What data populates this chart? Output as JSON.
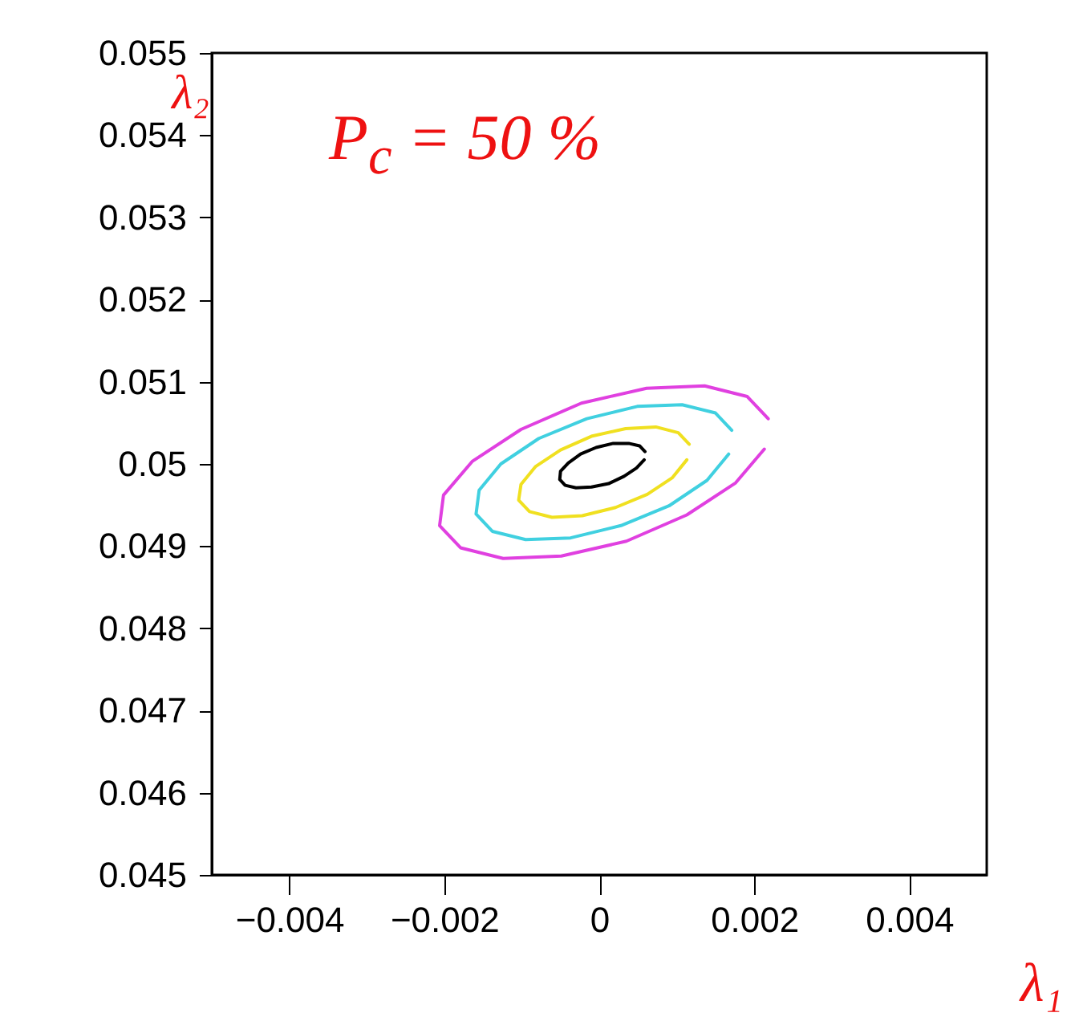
{
  "chart_data": {
    "type": "line",
    "xlabel": "λ₁",
    "ylabel": "λ₂",
    "annotations": [
      "P$_{c}$ = 50 %"
    ],
    "xlim": [
      -0.005,
      0.005
    ],
    "xticks": [
      -0.004,
      -0.002,
      0,
      0.002,
      0.004
    ],
    "ylim": [
      0.045,
      0.055
    ],
    "yticks": [
      0.045,
      0.046,
      0.047,
      0.048,
      0.049,
      0.05,
      0.051,
      0.052,
      0.053,
      0.054,
      0.055
    ],
    "grid": false,
    "marker": "none",
    "line_style": "solid",
    "series": [
      {
        "color": "#e040e0",
        "x": [
          0.00218,
          0.00191,
          0.00136,
          0.00061,
          -0.00023,
          -0.00101,
          -0.00164,
          -0.00201,
          -0.00206,
          -0.00179,
          -0.00124,
          -0.00049,
          0.00035,
          0.00113,
          0.00176,
          0.00213
        ],
        "values": [
          0.05055,
          0.05082,
          0.05095,
          0.05092,
          0.05074,
          0.05042,
          0.05003,
          0.04962,
          0.04925,
          0.04898,
          0.04885,
          0.04888,
          0.04906,
          0.04938,
          0.04977,
          0.05018
        ]
      },
      {
        "color": "#40d0e0",
        "x": [
          0.00171,
          0.0015,
          0.00107,
          0.00049,
          -0.00016,
          -0.00078,
          -0.00127,
          -0.00155,
          -0.00159,
          -0.00138,
          -0.00095,
          -0.00037,
          0.00028,
          0.0009,
          0.00139,
          0.00167
        ],
        "values": [
          0.05041,
          0.05062,
          0.05072,
          0.0507,
          0.05055,
          0.05031,
          0.05,
          0.04968,
          0.04939,
          0.04918,
          0.04908,
          0.0491,
          0.04925,
          0.04949,
          0.0498,
          0.05012
        ]
      },
      {
        "color": "#f0e020",
        "x": [
          0.00116,
          0.00102,
          0.00073,
          0.00034,
          -9e-05,
          -0.0005,
          -0.00082,
          -0.00101,
          -0.00104,
          -0.0009,
          -0.00061,
          -0.00022,
          0.00021,
          0.00062,
          0.00094,
          0.00113
        ],
        "values": [
          0.05024,
          0.05038,
          0.05045,
          0.05043,
          0.05034,
          0.05017,
          0.04997,
          0.04975,
          0.04956,
          0.04942,
          0.04935,
          0.04937,
          0.04947,
          0.04963,
          0.04983,
          0.05005
        ]
      },
      {
        "color": "#000000",
        "x": [
          0.00059,
          0.00052,
          0.00038,
          0.00018,
          -4e-05,
          -0.00024,
          -0.0004,
          -0.0005,
          -0.00051,
          -0.00044,
          -0.0003,
          -0.0001,
          0.00012,
          0.00032,
          0.00048,
          0.00058
        ],
        "values": [
          0.05015,
          0.05022,
          0.05025,
          0.05025,
          0.0502,
          0.05012,
          0.05001,
          0.04991,
          0.04981,
          0.04974,
          0.04971,
          0.04972,
          0.04976,
          0.04985,
          0.04995,
          0.05005
        ]
      }
    ]
  }
}
